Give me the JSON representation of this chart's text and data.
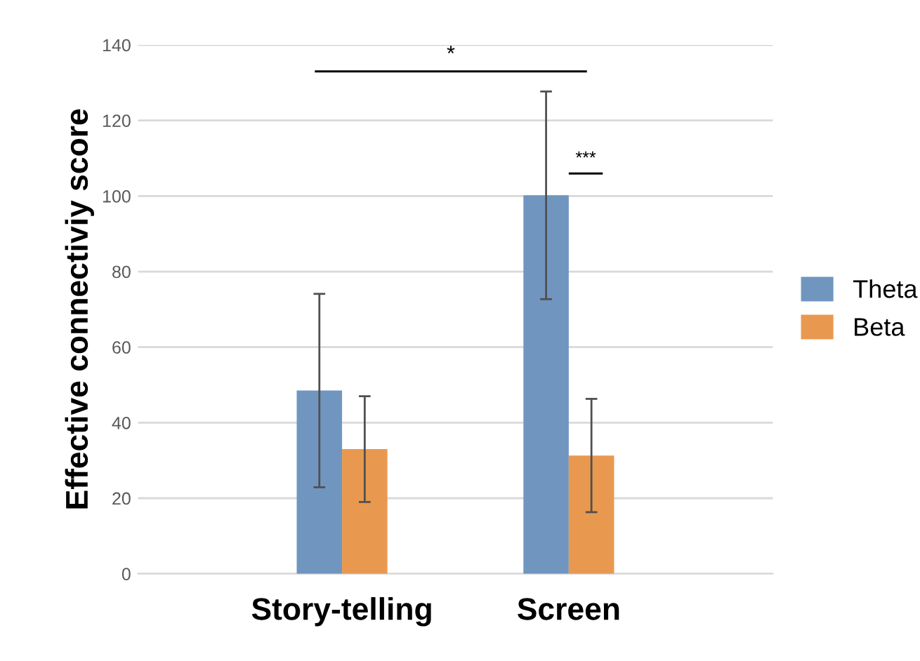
{
  "chart_data": {
    "type": "bar",
    "ylabel": "Effective connectiviy score",
    "categories": [
      "Story-telling",
      "Screen"
    ],
    "series": [
      {
        "name": "Theta",
        "color": "#7096c0",
        "values": [
          48.5,
          100.2
        ],
        "errors": [
          25.6,
          27.5
        ]
      },
      {
        "name": "Beta",
        "color": "#e8994f",
        "values": [
          33.0,
          31.3
        ],
        "errors": [
          14,
          15
        ]
      }
    ],
    "ylim": [
      0,
      140
    ],
    "yticks": [
      0,
      20,
      40,
      60,
      80,
      100,
      120,
      140
    ],
    "grid": "y",
    "legend": "right",
    "annotations": [
      "*",
      "***"
    ]
  }
}
